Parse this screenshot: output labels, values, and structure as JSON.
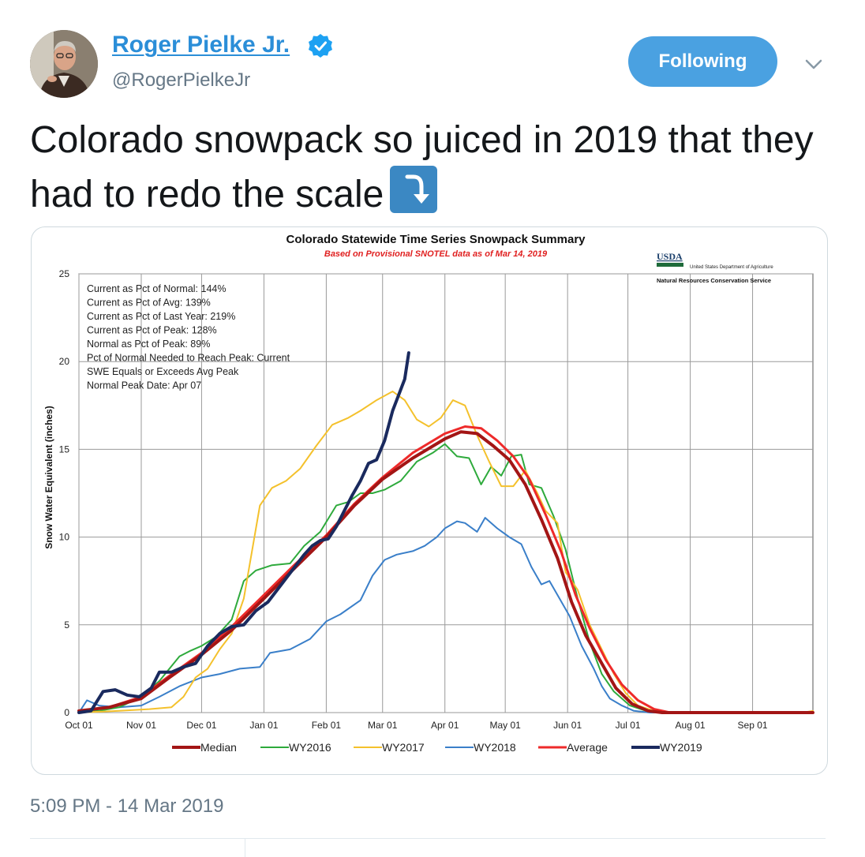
{
  "tweet": {
    "display_name": "Roger Pielke Jr.",
    "handle": "@RogerPielkeJr",
    "follow_label": "Following",
    "text": "Colorado snowpack so juiced in 2019 that they had to redo the scale",
    "timestamp": "5:09 PM - 14 Mar 2019"
  },
  "colors": {
    "accent": "#4aa1e1",
    "link": "#2b8ed8"
  },
  "icons": {
    "verified": "verified-badge-icon",
    "caret": "chevron-down-icon",
    "emoji": "arrow-down-right-curved-icon"
  },
  "chart_data": {
    "type": "line",
    "title": "Colorado Statewide Time Series Snowpack Summary",
    "subtitle": "Based on Provisional SNOTEL data as of Mar 14, 2019",
    "ylabel": "Snow Water Equivalent (inches)",
    "xlabel": "",
    "ylim": [
      0,
      25
    ],
    "yticks": [
      0,
      5,
      10,
      15,
      20,
      25
    ],
    "xticks": [
      "Oct 01",
      "Nov 01",
      "Dec 01",
      "Jan 01",
      "Feb 01",
      "Mar 01",
      "Apr 01",
      "May 01",
      "Jun 01",
      "Jul 01",
      "Aug 01",
      "Sep 01"
    ],
    "grid": true,
    "legend_position": "bottom",
    "logo": {
      "usda": "USDA",
      "dept": "United States Department of Agriculture",
      "service": "Natural Resources Conservation Service"
    },
    "annotations": [
      "Current  as Pct of Normal:  144%",
      "Current  as Pct of Avg:  139%",
      "Current  as Pct of Last Year:  219%",
      "Current  as Pct of Peak:  128%",
      "Normal  as Pct of Peak:  89%",
      "Pct of Normal Needed  to Reach Peak:  Current",
      "SWE Equals or Exceeds Avg Peak",
      "Normal  Peak Date:  Apr 07"
    ],
    "series": [
      {
        "name": "Median",
        "color": "#a31515",
        "width": 4,
        "points": [
          [
            0,
            0.1
          ],
          [
            15,
            0.3
          ],
          [
            31,
            0.8
          ],
          [
            45,
            2.0
          ],
          [
            61,
            3.3
          ],
          [
            76,
            4.7
          ],
          [
            92,
            6.5
          ],
          [
            107,
            8.2
          ],
          [
            123,
            10.0
          ],
          [
            137,
            11.8
          ],
          [
            151,
            13.3
          ],
          [
            166,
            14.5
          ],
          [
            182,
            15.6
          ],
          [
            190,
            16.0
          ],
          [
            198,
            15.9
          ],
          [
            206,
            15.2
          ],
          [
            214,
            14.4
          ],
          [
            222,
            13.0
          ],
          [
            230,
            11.0
          ],
          [
            238,
            8.8
          ],
          [
            245,
            6.3
          ],
          [
            252,
            4.4
          ],
          [
            260,
            2.8
          ],
          [
            267,
            1.4
          ],
          [
            275,
            0.5
          ],
          [
            283,
            0.1
          ],
          [
            290,
            0.0
          ],
          [
            365,
            0.0
          ]
        ]
      },
      {
        "name": "WY2016",
        "color": "#2eaa3c",
        "width": 2,
        "points": [
          [
            0,
            0.0
          ],
          [
            10,
            0.1
          ],
          [
            20,
            0.3
          ],
          [
            31,
            0.9
          ],
          [
            40,
            1.8
          ],
          [
            50,
            3.2
          ],
          [
            55,
            3.5
          ],
          [
            61,
            3.8
          ],
          [
            68,
            4.3
          ],
          [
            76,
            5.3
          ],
          [
            82,
            7.5
          ],
          [
            88,
            8.1
          ],
          [
            96,
            8.4
          ],
          [
            105,
            8.5
          ],
          [
            112,
            9.5
          ],
          [
            120,
            10.3
          ],
          [
            128,
            11.8
          ],
          [
            134,
            12.0
          ],
          [
            140,
            12.5
          ],
          [
            146,
            12.5
          ],
          [
            152,
            12.7
          ],
          [
            160,
            13.2
          ],
          [
            168,
            14.3
          ],
          [
            176,
            14.8
          ],
          [
            182,
            15.3
          ],
          [
            188,
            14.6
          ],
          [
            194,
            14.5
          ],
          [
            200,
            13.0
          ],
          [
            205,
            14.0
          ],
          [
            210,
            13.5
          ],
          [
            215,
            14.6
          ],
          [
            220,
            14.7
          ],
          [
            224,
            13.0
          ],
          [
            230,
            12.8
          ],
          [
            236,
            11.2
          ],
          [
            242,
            9.3
          ],
          [
            248,
            6.5
          ],
          [
            254,
            4.0
          ],
          [
            260,
            2.2
          ],
          [
            266,
            1.2
          ],
          [
            274,
            0.4
          ],
          [
            282,
            0.1
          ],
          [
            290,
            0.0
          ],
          [
            365,
            0.0
          ]
        ]
      },
      {
        "name": "WY2017",
        "color": "#f4c12c",
        "width": 2,
        "points": [
          [
            0,
            0.0
          ],
          [
            20,
            0.1
          ],
          [
            35,
            0.2
          ],
          [
            46,
            0.3
          ],
          [
            52,
            0.9
          ],
          [
            58,
            2.0
          ],
          [
            64,
            2.5
          ],
          [
            70,
            3.6
          ],
          [
            76,
            4.5
          ],
          [
            82,
            6.5
          ],
          [
            90,
            11.8
          ],
          [
            96,
            12.8
          ],
          [
            103,
            13.2
          ],
          [
            110,
            13.9
          ],
          [
            118,
            15.2
          ],
          [
            126,
            16.4
          ],
          [
            134,
            16.8
          ],
          [
            140,
            17.2
          ],
          [
            148,
            17.8
          ],
          [
            156,
            18.3
          ],
          [
            162,
            17.8
          ],
          [
            168,
            16.7
          ],
          [
            174,
            16.3
          ],
          [
            180,
            16.8
          ],
          [
            186,
            17.8
          ],
          [
            192,
            17.5
          ],
          [
            198,
            15.8
          ],
          [
            204,
            14.3
          ],
          [
            210,
            12.9
          ],
          [
            216,
            12.9
          ],
          [
            222,
            13.8
          ],
          [
            228,
            12.5
          ],
          [
            232,
            11.5
          ],
          [
            238,
            10.8
          ],
          [
            242,
            8.0
          ],
          [
            248,
            7.0
          ],
          [
            254,
            5.0
          ],
          [
            260,
            3.6
          ],
          [
            266,
            2.2
          ],
          [
            272,
            1.1
          ],
          [
            278,
            0.4
          ],
          [
            286,
            0.1
          ],
          [
            292,
            0.0
          ],
          [
            360,
            0.0
          ],
          [
            365,
            0.1
          ]
        ]
      },
      {
        "name": "WY2018",
        "color": "#3a7fc9",
        "width": 2,
        "points": [
          [
            0,
            0.0
          ],
          [
            4,
            0.7
          ],
          [
            10,
            0.4
          ],
          [
            20,
            0.3
          ],
          [
            31,
            0.4
          ],
          [
            40,
            0.9
          ],
          [
            50,
            1.5
          ],
          [
            61,
            2.0
          ],
          [
            70,
            2.2
          ],
          [
            80,
            2.5
          ],
          [
            90,
            2.6
          ],
          [
            95,
            3.4
          ],
          [
            105,
            3.6
          ],
          [
            115,
            4.2
          ],
          [
            123,
            5.2
          ],
          [
            130,
            5.6
          ],
          [
            140,
            6.4
          ],
          [
            146,
            7.8
          ],
          [
            152,
            8.7
          ],
          [
            158,
            9.0
          ],
          [
            166,
            9.2
          ],
          [
            172,
            9.5
          ],
          [
            178,
            10.0
          ],
          [
            182,
            10.5
          ],
          [
            188,
            10.9
          ],
          [
            192,
            10.8
          ],
          [
            198,
            10.3
          ],
          [
            202,
            11.1
          ],
          [
            208,
            10.5
          ],
          [
            214,
            10.0
          ],
          [
            220,
            9.6
          ],
          [
            225,
            8.3
          ],
          [
            230,
            7.3
          ],
          [
            234,
            7.5
          ],
          [
            238,
            6.7
          ],
          [
            244,
            5.5
          ],
          [
            250,
            3.8
          ],
          [
            256,
            2.5
          ],
          [
            260,
            1.5
          ],
          [
            264,
            0.8
          ],
          [
            270,
            0.4
          ],
          [
            276,
            0.1
          ],
          [
            284,
            0.0
          ],
          [
            365,
            0.0
          ]
        ]
      },
      {
        "name": "Average",
        "color": "#ee2a2a",
        "width": 3,
        "points": [
          [
            0,
            0.1
          ],
          [
            15,
            0.3
          ],
          [
            31,
            0.9
          ],
          [
            45,
            2.1
          ],
          [
            61,
            3.4
          ],
          [
            76,
            4.9
          ],
          [
            92,
            6.7
          ],
          [
            107,
            8.4
          ],
          [
            123,
            10.1
          ],
          [
            137,
            11.9
          ],
          [
            151,
            13.4
          ],
          [
            166,
            14.8
          ],
          [
            182,
            15.9
          ],
          [
            192,
            16.3
          ],
          [
            200,
            16.2
          ],
          [
            208,
            15.5
          ],
          [
            216,
            14.6
          ],
          [
            224,
            13.3
          ],
          [
            232,
            11.3
          ],
          [
            240,
            9.1
          ],
          [
            247,
            6.7
          ],
          [
            254,
            4.8
          ],
          [
            262,
            3.0
          ],
          [
            270,
            1.6
          ],
          [
            278,
            0.7
          ],
          [
            286,
            0.2
          ],
          [
            294,
            0.0
          ],
          [
            365,
            0.0
          ]
        ]
      },
      {
        "name": "WY2019",
        "color": "#1a2a5e",
        "width": 4,
        "points": [
          [
            0,
            0.0
          ],
          [
            6,
            0.1
          ],
          [
            12,
            1.2
          ],
          [
            18,
            1.3
          ],
          [
            24,
            1.0
          ],
          [
            30,
            0.9
          ],
          [
            36,
            1.4
          ],
          [
            40,
            2.3
          ],
          [
            46,
            2.3
          ],
          [
            52,
            2.6
          ],
          [
            58,
            2.8
          ],
          [
            64,
            3.8
          ],
          [
            70,
            4.5
          ],
          [
            76,
            4.9
          ],
          [
            82,
            5.0
          ],
          [
            88,
            5.8
          ],
          [
            94,
            6.3
          ],
          [
            100,
            7.2
          ],
          [
            106,
            8.1
          ],
          [
            112,
            9.0
          ],
          [
            116,
            9.5
          ],
          [
            120,
            9.8
          ],
          [
            124,
            9.9
          ],
          [
            128,
            10.6
          ],
          [
            132,
            11.5
          ],
          [
            136,
            12.4
          ],
          [
            140,
            13.2
          ],
          [
            144,
            14.2
          ],
          [
            148,
            14.4
          ],
          [
            152,
            15.5
          ],
          [
            156,
            17.2
          ],
          [
            160,
            18.4
          ],
          [
            162,
            19.0
          ],
          [
            164,
            20.5
          ]
        ]
      }
    ]
  }
}
